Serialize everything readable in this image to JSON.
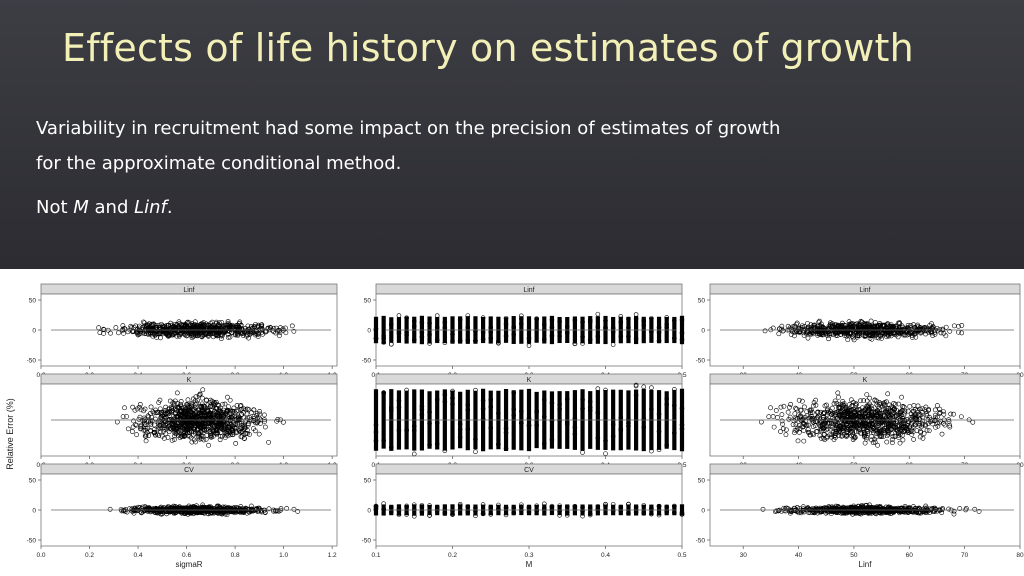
{
  "slide": {
    "title": "Effects of life history on estimates of growth",
    "line1": "Variability in recruitment had some impact on the precision of estimates of growth",
    "line2": "for the approximate conditional method.",
    "line3_prefix": "Not ",
    "line3_M": "M",
    "line3_and": " and ",
    "line3_Linf": "Linf",
    "line3_suffix": "."
  },
  "colors": {
    "title": "#f2efb7",
    "strip": "#d9d9d9",
    "points": "#000000"
  },
  "chart_data": {
    "type": "scatter",
    "ylabel": "Relative Error (%)",
    "panel_rows": [
      "Linf",
      "K",
      "CV"
    ],
    "columns": [
      {
        "xlabel": "sigmaR",
        "xlim": [
          0.0,
          1.22
        ],
        "xticks": [
          0.0,
          0.2,
          0.4,
          0.6,
          0.8,
          1.0,
          1.2
        ],
        "xtick_labels": [
          "0.0",
          "0.2",
          "0.4",
          "0.6",
          "0.8",
          "1.0",
          "1.2"
        ],
        "distribution": "continuous",
        "center": 0.65,
        "spread": [
          {
            "row": "Linf",
            "x_range": [
              0.02,
              1.22
            ],
            "y_spread": 20
          },
          {
            "row": "K",
            "x_range": [
              0.05,
              1.0
            ],
            "y_spread": 55
          },
          {
            "row": "CV",
            "x_range": [
              0.05,
              1.1
            ],
            "y_spread": 10
          }
        ]
      },
      {
        "xlabel": "M",
        "xlim": [
          0.1,
          0.5
        ],
        "xticks": [
          0.1,
          0.2,
          0.3,
          0.4,
          0.5
        ],
        "xtick_labels": [
          "0.1",
          "0.2",
          "0.3",
          "0.4",
          "0.5"
        ],
        "distribution": "discrete",
        "levels": 41,
        "spread": [
          {
            "row": "Linf",
            "x_range": [
              0.1,
              0.5
            ],
            "y_spread": 25
          },
          {
            "row": "K",
            "x_range": [
              0.1,
              0.5
            ],
            "y_spread": 55
          },
          {
            "row": "CV",
            "x_range": [
              0.1,
              0.5
            ],
            "y_spread": 10
          }
        ]
      },
      {
        "xlabel": "Linf",
        "xlim": [
          24,
          80
        ],
        "xticks": [
          30,
          40,
          50,
          60,
          70,
          80
        ],
        "xtick_labels": [
          "30",
          "40",
          "50",
          "60",
          "70",
          "80"
        ],
        "distribution": "continuous",
        "center": 52,
        "spread": [
          {
            "row": "Linf",
            "x_range": [
              25,
              78
            ],
            "y_spread": 20
          },
          {
            "row": "K",
            "x_range": [
              25,
              78
            ],
            "y_spread": 55
          },
          {
            "row": "CV",
            "x_range": [
              25,
              78
            ],
            "y_spread": 10
          }
        ]
      }
    ],
    "panels": {
      "Linf": {
        "ylim": [
          -60,
          60
        ],
        "yticks": [
          -50,
          0,
          50
        ],
        "ytick_labels": [
          "-50",
          "0",
          "50"
        ]
      },
      "K": {
        "ylim": [
          -60,
          60
        ],
        "yticks": [],
        "ytick_labels": []
      },
      "CV": {
        "ylim": [
          -60,
          60
        ],
        "yticks": [
          -50,
          0,
          50
        ],
        "ytick_labels": [
          "-50",
          "0",
          "50"
        ]
      }
    }
  }
}
